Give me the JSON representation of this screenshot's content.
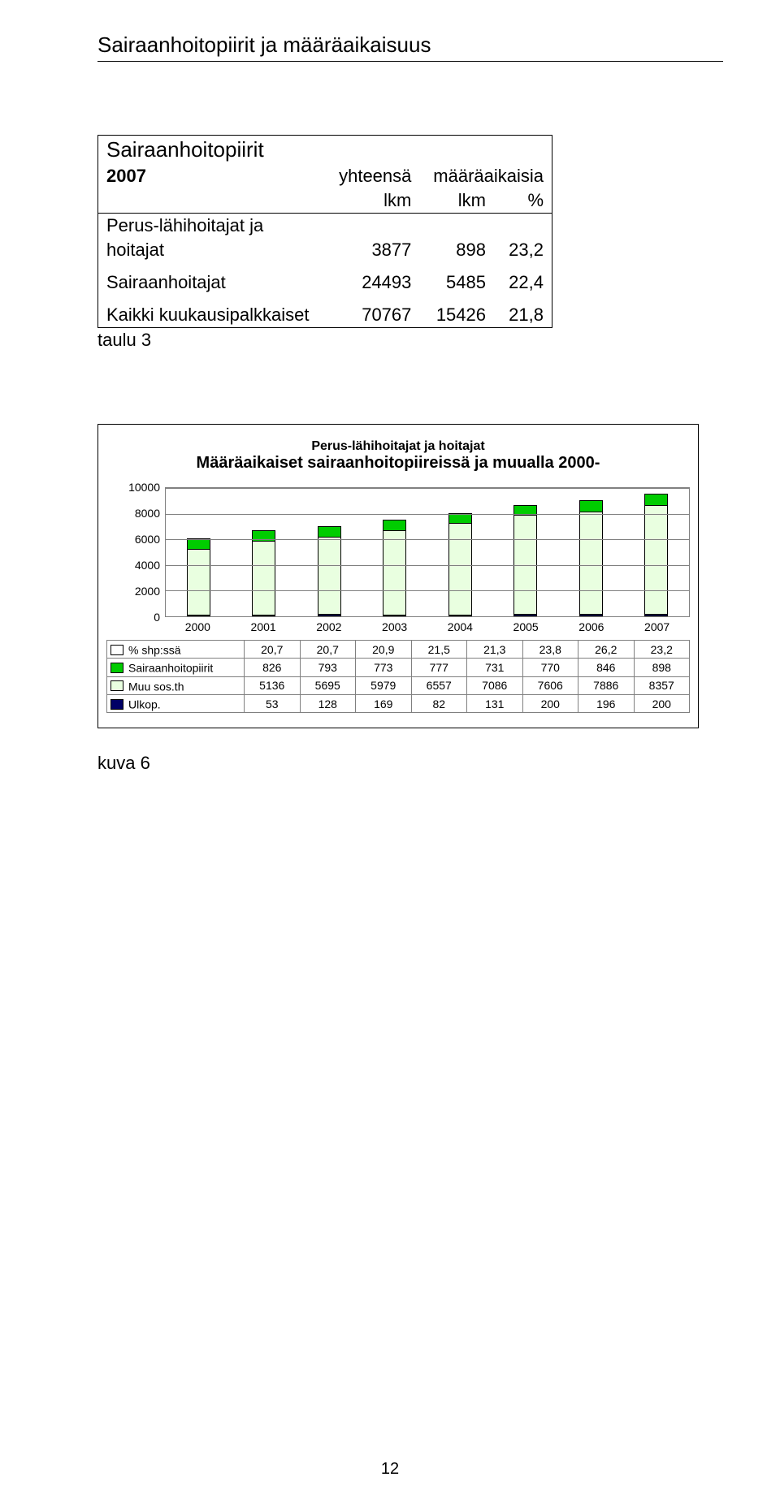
{
  "section_title": "Sairaanhoitopiirit  ja määräaikaisuus",
  "table1": {
    "title": "Sairaanhoitopiirit",
    "year": "2007",
    "col_yht": "yhteensä",
    "col_maara": "määräaikaisia",
    "sub_lkm1": "lkm",
    "sub_lkm2": "lkm",
    "sub_pct": "%",
    "rows": [
      {
        "label_a": "Perus-lähihoitajat ja",
        "label_b": "hoitajat",
        "v1": "3877",
        "v2": "898",
        "v3": "23,2"
      },
      {
        "label_a": "Sairaanhoitajat",
        "label_b": "",
        "v1": "24493",
        "v2": "5485",
        "v3": "22,4"
      },
      {
        "label_a": "Kaikki kuukausipalkkaiset",
        "label_b": "",
        "v1": "70767",
        "v2": "15426",
        "v3": "21,8"
      }
    ],
    "after_label": "taulu 3"
  },
  "chart": {
    "type": "stacked-bar",
    "title_line1": "Perus-lähihoitajat ja hoitajat",
    "title_line2": "Määräaikaiset sairaanhoitopiireissä ja muualla 2000-",
    "categories": [
      "2000",
      "2001",
      "2002",
      "2003",
      "2004",
      "2005",
      "2006",
      "2007"
    ],
    "ymax": 10000,
    "yticks": [
      0,
      2000,
      4000,
      6000,
      8000,
      10000
    ],
    "series": [
      {
        "name": "% shp:ssä",
        "color": "#ffffff",
        "color_label": "#ffffff",
        "values_text": [
          "20,7",
          "20,7",
          "20,9",
          "21,5",
          "21,3",
          "23,8",
          "26,2",
          "23,2"
        ],
        "values_num": [
          0,
          0,
          0,
          0,
          0,
          0,
          0,
          0
        ],
        "plot": false
      },
      {
        "name": "Sairaanhoitopiirit",
        "color": "#00cc00",
        "color_label": "#00cc00",
        "values_text": [
          "826",
          "793",
          "773",
          "777",
          "731",
          "770",
          "846",
          "898"
        ],
        "values_num": [
          826,
          793,
          773,
          777,
          731,
          770,
          846,
          898
        ],
        "plot": true
      },
      {
        "name": "Muu sos.th",
        "color": "#e9ffe0",
        "color_label": "#e9ffe0",
        "values_text": [
          "5136",
          "5695",
          "5979",
          "6557",
          "7086",
          "7606",
          "7886",
          "8357"
        ],
        "values_num": [
          5136,
          5695,
          5979,
          6557,
          7086,
          7606,
          7886,
          8357
        ],
        "plot": true
      },
      {
        "name": "Ulkop.",
        "color": "#000066",
        "color_label": "#000066",
        "values_text": [
          "53",
          "128",
          "169",
          "82",
          "131",
          "200",
          "196",
          "200"
        ],
        "values_num": [
          53,
          128,
          169,
          82,
          131,
          200,
          196,
          200
        ],
        "plot": true
      }
    ],
    "grid_color": "#808080",
    "background_color": "#ffffff",
    "fig_label": "kuva 6"
  },
  "page_number": "12"
}
